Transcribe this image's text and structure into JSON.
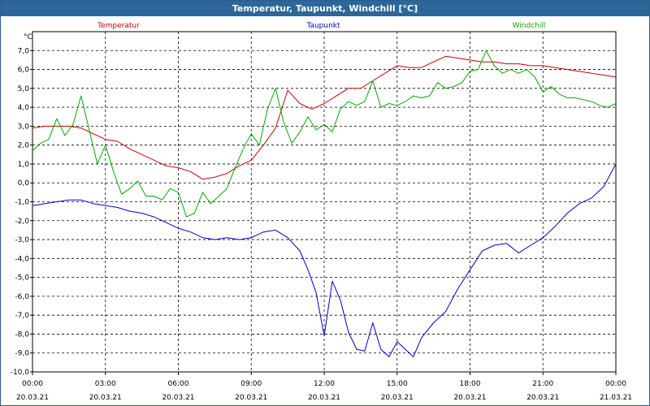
{
  "window": {
    "title": "Temperatur, Taupunkt, Windchill [°C]"
  },
  "chart_data": {
    "type": "line",
    "title": "Temperatur, Taupunkt, Windchill [°C]",
    "ylabel": "°C",
    "ylim": [
      -10,
      8
    ],
    "yticks": [
      "7,0",
      "6,0",
      "5,0",
      "4,0",
      "3,0",
      "2,0",
      "1,0",
      "0,0",
      "-1,0",
      "-2,0",
      "-3,0",
      "-4,0",
      "-5,0",
      "-6,0",
      "-7,0",
      "-8,0",
      "-9,0",
      "-10,0"
    ],
    "xlim": [
      "2021-03-20 00:00",
      "2021-03-21 00:00"
    ],
    "xticks": [
      {
        "time": "00:00",
        "date": "20.03.21"
      },
      {
        "time": "03:00",
        "date": "20.03.21"
      },
      {
        "time": "06:00",
        "date": "20.03.21"
      },
      {
        "time": "09:00",
        "date": "20.03.21"
      },
      {
        "time": "12:00",
        "date": "20.03.21"
      },
      {
        "time": "15:00",
        "date": "20.03.21"
      },
      {
        "time": "18:00",
        "date": "20.03.21"
      },
      {
        "time": "21:00",
        "date": "20.03.21"
      },
      {
        "time": "00:00",
        "date": "21.03.21"
      }
    ],
    "grid": true,
    "series": [
      {
        "name": "Temperatur",
        "color": "#cc0000",
        "x": [
          "00:00",
          "00:30",
          "01:00",
          "01:30",
          "02:00",
          "02:30",
          "03:00",
          "03:30",
          "04:00",
          "04:30",
          "05:00",
          "05:30",
          "06:00",
          "06:30",
          "07:00",
          "07:30",
          "08:00",
          "08:30",
          "09:00",
          "09:30",
          "10:00",
          "10:30",
          "11:00",
          "11:30",
          "12:00",
          "12:30",
          "13:00",
          "13:30",
          "14:00",
          "14:30",
          "15:00",
          "15:30",
          "16:00",
          "16:30",
          "17:00",
          "17:30",
          "18:00",
          "18:30",
          "19:00",
          "19:30",
          "20:00",
          "20:30",
          "21:00",
          "21:30",
          "22:00",
          "22:30",
          "23:00",
          "23:30",
          "24:00"
        ],
        "values": [
          2.9,
          3.0,
          3.0,
          3.0,
          2.9,
          2.6,
          2.3,
          2.2,
          1.8,
          1.5,
          1.2,
          0.9,
          0.8,
          0.6,
          0.2,
          0.3,
          0.5,
          0.9,
          1.2,
          2.0,
          2.9,
          4.9,
          4.2,
          3.9,
          4.2,
          4.6,
          5.0,
          5.0,
          5.4,
          5.8,
          6.2,
          6.1,
          6.1,
          6.4,
          6.7,
          6.6,
          6.5,
          6.4,
          6.4,
          6.3,
          6.3,
          6.2,
          6.2,
          6.1,
          6.0,
          5.9,
          5.8,
          5.7,
          5.6
        ]
      },
      {
        "name": "Taupunkt",
        "color": "#0000cc",
        "x": [
          "00:00",
          "00:30",
          "01:00",
          "01:30",
          "02:00",
          "02:30",
          "03:00",
          "03:30",
          "04:00",
          "04:30",
          "05:00",
          "05:30",
          "06:00",
          "06:30",
          "07:00",
          "07:30",
          "08:00",
          "08:30",
          "09:00",
          "09:30",
          "10:00",
          "10:30",
          "11:00",
          "11:20",
          "11:40",
          "12:00",
          "12:20",
          "12:40",
          "13:00",
          "13:20",
          "13:40",
          "14:00",
          "14:20",
          "14:40",
          "15:00",
          "15:20",
          "15:40",
          "16:00",
          "16:30",
          "17:00",
          "17:30",
          "18:00",
          "18:30",
          "19:00",
          "19:30",
          "20:00",
          "20:30",
          "21:00",
          "21:30",
          "22:00",
          "22:30",
          "23:00",
          "23:30",
          "24:00"
        ],
        "values": [
          -1.2,
          -1.1,
          -1.0,
          -0.9,
          -0.9,
          -1.1,
          -1.2,
          -1.3,
          -1.5,
          -1.6,
          -1.8,
          -2.1,
          -2.4,
          -2.6,
          -2.9,
          -3.0,
          -2.9,
          -3.0,
          -2.9,
          -2.6,
          -2.5,
          -2.9,
          -3.6,
          -4.6,
          -5.8,
          -8.1,
          -5.2,
          -6.2,
          -7.9,
          -8.8,
          -8.9,
          -7.4,
          -8.8,
          -9.2,
          -8.4,
          -8.8,
          -9.2,
          -8.2,
          -7.4,
          -6.8,
          -5.6,
          -4.6,
          -3.6,
          -3.3,
          -3.2,
          -3.7,
          -3.3,
          -2.9,
          -2.3,
          -1.6,
          -1.1,
          -0.8,
          -0.2,
          1.0
        ]
      },
      {
        "name": "Windchill",
        "color": "#00aa00",
        "x": [
          "00:00",
          "00:20",
          "00:40",
          "01:00",
          "01:20",
          "01:40",
          "02:00",
          "02:20",
          "02:40",
          "03:00",
          "03:20",
          "03:40",
          "04:00",
          "04:20",
          "04:40",
          "05:00",
          "05:20",
          "05:40",
          "06:00",
          "06:20",
          "06:40",
          "07:00",
          "07:20",
          "07:40",
          "08:00",
          "08:20",
          "08:40",
          "09:00",
          "09:20",
          "09:40",
          "10:00",
          "10:20",
          "10:40",
          "11:00",
          "11:20",
          "11:40",
          "12:00",
          "12:20",
          "12:40",
          "13:00",
          "13:20",
          "13:40",
          "14:00",
          "14:20",
          "14:40",
          "15:00",
          "15:20",
          "15:40",
          "16:00",
          "16:20",
          "16:40",
          "17:00",
          "17:20",
          "17:40",
          "18:00",
          "18:20",
          "18:40",
          "19:00",
          "19:20",
          "19:40",
          "20:00",
          "20:20",
          "20:40",
          "21:00",
          "21:20",
          "21:40",
          "22:00",
          "22:20",
          "22:40",
          "23:00",
          "23:20",
          "23:40",
          "24:00"
        ],
        "values": [
          1.7,
          2.1,
          2.3,
          3.4,
          2.5,
          3.1,
          4.6,
          2.8,
          1.0,
          2.0,
          0.6,
          -0.6,
          -0.3,
          0.1,
          -0.7,
          -0.7,
          -0.9,
          -0.3,
          -0.5,
          -1.8,
          -1.6,
          -0.5,
          -1.1,
          -0.7,
          -0.3,
          0.8,
          1.8,
          2.6,
          2.0,
          3.9,
          5.0,
          3.2,
          2.1,
          2.7,
          3.5,
          2.8,
          3.1,
          2.7,
          3.9,
          4.3,
          4.1,
          4.3,
          5.4,
          4.0,
          4.2,
          4.1,
          4.3,
          4.6,
          4.5,
          4.6,
          5.3,
          5.0,
          5.1,
          5.3,
          5.9,
          6.0,
          7.0,
          6.2,
          5.8,
          6.0,
          5.8,
          6.0,
          5.6,
          4.8,
          5.1,
          4.7,
          4.5,
          4.5,
          4.4,
          4.3,
          4.1,
          4.0,
          4.2
        ]
      }
    ]
  }
}
